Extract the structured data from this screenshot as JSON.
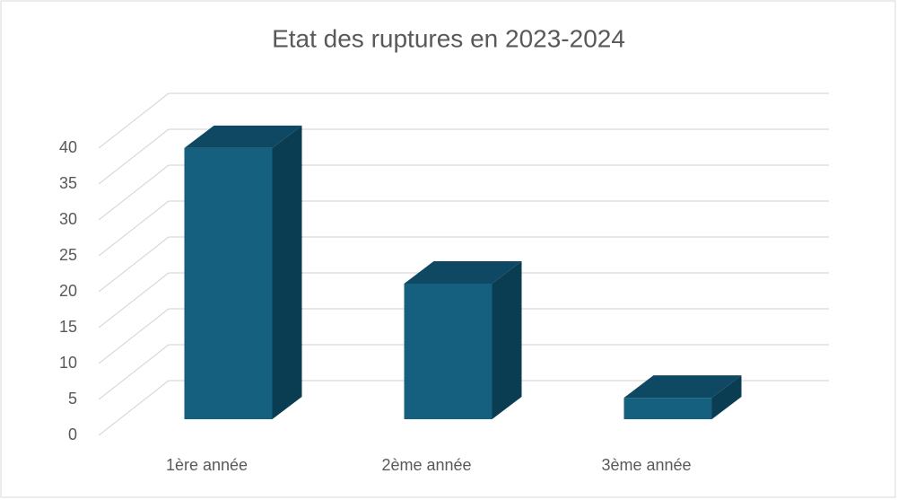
{
  "chart_data": {
    "type": "bar3d",
    "title": "Etat des ruptures en 2023-2024",
    "categories": [
      "1ère année",
      "2ème année",
      "3ème année"
    ],
    "values": [
      38,
      19,
      3
    ],
    "color": "#155f7f",
    "ylim": [
      0,
      40
    ],
    "yticks": [
      0,
      5,
      10,
      15,
      20,
      25,
      30,
      35,
      40
    ],
    "grid": true
  }
}
